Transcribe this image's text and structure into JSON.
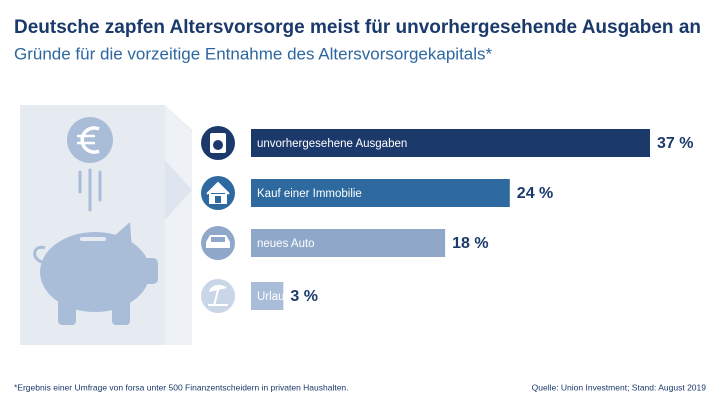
{
  "chart_data": {
    "type": "bar",
    "title": "Deutsche zapfen Altersvorsorge meist für unvorhergesehende Ausgaben an",
    "subtitle": "Gründe für die vorzeitige Entnahme des Altersvorsorgekapitals*",
    "categories": [
      "unvorhergesehene Ausgaben",
      "Kauf einer Immobilie",
      "neues Auto",
      "Urlaub"
    ],
    "values": [
      37,
      24,
      18,
      3
    ],
    "value_labels": [
      "37 %",
      "24 %",
      "18 %",
      "3 %"
    ],
    "colors": [
      "#1b3a6b",
      "#2e6aa0",
      "#8fa8c9",
      "#a9bdd8"
    ],
    "footnote": "*Ergebnis einer Umfrage von forsa unter 500 Finanzentscheidern in privaten Haushalten.",
    "source": "Quelle: Union Investment; Stand: August 2019"
  }
}
